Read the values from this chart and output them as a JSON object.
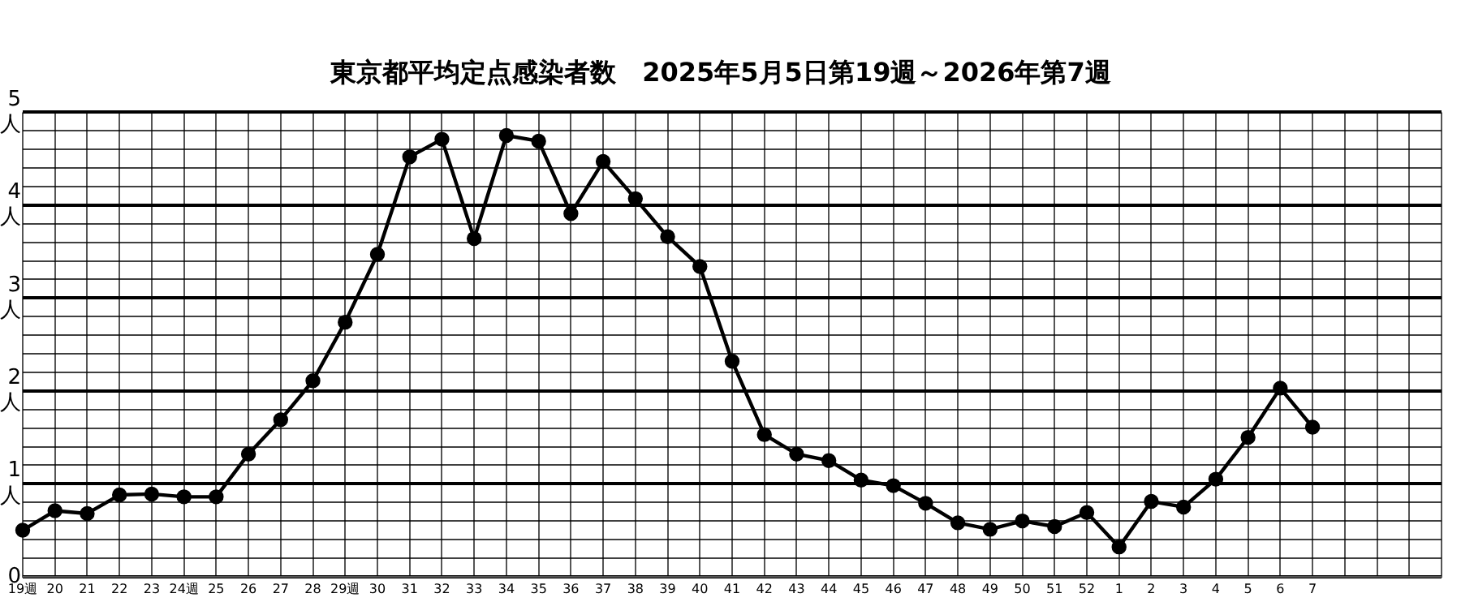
{
  "chart_data": {
    "type": "line",
    "title": "東京都平均定点感染者数　2025年5月5日第19週～2026年第7週",
    "categories": [
      "19週",
      "20",
      "21",
      "22",
      "23",
      "24週",
      "25",
      "26",
      "27",
      "28",
      "29週",
      "30",
      "31",
      "32",
      "33",
      "34",
      "35",
      "36",
      "37",
      "38",
      "39",
      "40",
      "41",
      "42",
      "43",
      "44",
      "45",
      "46",
      "47",
      "48",
      "49",
      "50",
      "51",
      "52",
      "1",
      "2",
      "3",
      "4",
      "5",
      "6",
      "7",
      null,
      null,
      null,
      null
    ],
    "series": [
      {
        "color": "#000000",
        "values": [
          0.5,
          0.71,
          0.68,
          0.88,
          0.89,
          0.86,
          0.86,
          1.32,
          1.69,
          2.11,
          2.74,
          3.47,
          4.52,
          4.71,
          3.64,
          4.75,
          4.69,
          3.91,
          4.47,
          4.07,
          3.66,
          3.34,
          2.32,
          1.53,
          1.32,
          1.25,
          1.04,
          0.98,
          0.79,
          0.58,
          0.51,
          0.6,
          0.54,
          0.69,
          0.32,
          0.81,
          0.75,
          1.05,
          1.5,
          2.03,
          1.61,
          null,
          null,
          null,
          null
        ]
      }
    ],
    "ylim": [
      0,
      5
    ],
    "yticks": [
      0,
      {
        "value": 0.2,
        "label": null
      },
      {
        "value": 0.4,
        "label": null
      },
      {
        "value": 0.6,
        "label": null
      },
      {
        "value": 0.8,
        "label": null
      },
      {
        "value": 1,
        "label": "1\n人"
      },
      {
        "value": 1.2,
        "label": null
      },
      {
        "value": 1.4,
        "label": null
      },
      {
        "value": 1.6,
        "label": null
      },
      {
        "value": 1.8,
        "label": null
      },
      {
        "value": 2,
        "label": "2\n人"
      },
      {
        "value": 2.2,
        "label": null
      },
      {
        "value": 2.4,
        "label": null
      },
      {
        "value": 2.6,
        "label": null
      },
      {
        "value": 2.8,
        "label": null
      },
      {
        "value": 3,
        "label": "3\n人"
      },
      {
        "value": 3.2,
        "label": null
      },
      {
        "value": 3.4,
        "label": null
      },
      {
        "value": 3.6,
        "label": null
      },
      {
        "value": 3.8,
        "label": null
      },
      {
        "value": 4,
        "label": "4\n人"
      },
      {
        "value": 4.2,
        "label": null
      },
      {
        "value": 4.4,
        "label": null
      },
      {
        "value": 4.6,
        "label": null
      },
      {
        "value": 4.8,
        "label": null
      },
      {
        "value": 5,
        "label": "5\n人"
      }
    ],
    "grid": true,
    "legend": false,
    "marker": "circle",
    "line_style": "solid"
  }
}
